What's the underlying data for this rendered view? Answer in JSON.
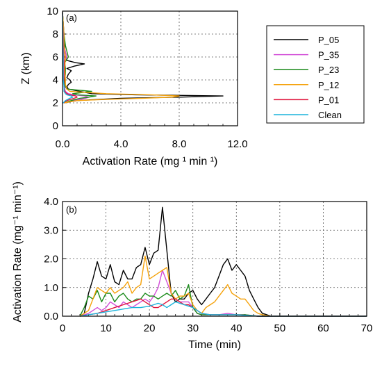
{
  "chart_data": [
    {
      "panel_label": "(a)",
      "type": "line",
      "xlabel": "Activation Rate (mg ¹ min ¹)",
      "ylabel": "Z (km)",
      "xlim": [
        0,
        12
      ],
      "ylim": [
        0,
        10
      ],
      "xticks": [
        "0.0",
        "4.0",
        "8.0",
        "12.0"
      ],
      "yticks": [
        "0",
        "2",
        "4",
        "6",
        "8",
        "10"
      ],
      "grid": true,
      "series": [
        {
          "name": "P_05",
          "color": "#000000",
          "z": [
            2.0,
            2.2,
            2.4,
            2.5,
            2.6,
            2.7,
            2.8,
            3.0,
            3.2,
            3.4,
            3.6,
            3.8,
            4.0,
            4.2,
            4.5,
            4.8,
            5.0,
            5.2,
            5.4,
            5.5,
            5.7,
            6.0,
            6.5,
            7.0,
            7.5,
            8.0,
            8.5,
            9.0,
            9.5,
            9.9
          ],
          "rate": [
            0.1,
            1.0,
            4.0,
            8.0,
            11.0,
            5.0,
            2.0,
            1.2,
            0.4,
            0.3,
            0.4,
            0.6,
            0.5,
            0.3,
            0.4,
            0.6,
            0.3,
            0.8,
            1.5,
            0.9,
            0.3,
            0.2,
            0.15,
            0.15,
            0.1,
            0.1,
            0.05,
            0.05,
            0.02,
            0.0
          ]
        },
        {
          "name": "P_35",
          "color": "#d24ed8",
          "z": [
            2.0,
            2.2,
            2.4,
            2.5,
            2.6,
            2.7,
            2.8,
            3.0,
            3.2,
            3.4,
            3.6,
            4.0,
            4.5,
            5.0,
            5.5,
            6.0,
            6.5,
            7.0,
            8.0,
            9.0,
            9.9
          ],
          "rate": [
            0.1,
            0.8,
            1.6,
            1.8,
            1.5,
            0.8,
            0.4,
            0.2,
            0.15,
            0.15,
            0.1,
            0.1,
            0.1,
            0.1,
            0.1,
            0.3,
            0.2,
            0.1,
            0.1,
            0.05,
            0.0
          ]
        },
        {
          "name": "P_23",
          "color": "#1a8a1a",
          "z": [
            2.0,
            2.2,
            2.4,
            2.5,
            2.6,
            2.7,
            2.8,
            3.0,
            3.2,
            3.4,
            3.6,
            4.0,
            4.5,
            5.0,
            5.5,
            6.0,
            6.5,
            7.0,
            8.0,
            9.0,
            9.9
          ],
          "rate": [
            0.1,
            0.6,
            1.2,
            1.8,
            2.3,
            1.0,
            0.7,
            2.0,
            0.3,
            0.2,
            0.15,
            0.15,
            0.2,
            0.2,
            0.15,
            0.4,
            0.3,
            0.2,
            0.1,
            0.05,
            0.0
          ]
        },
        {
          "name": "P_12",
          "color": "#f5a20a",
          "z": [
            2.0,
            2.2,
            2.3,
            2.4,
            2.5,
            2.6,
            2.7,
            2.8,
            3.0,
            3.2,
            3.6,
            4.0,
            5.0,
            6.0,
            7.0,
            8.0,
            9.0,
            9.9
          ],
          "rate": [
            0.1,
            1.0,
            3.0,
            5.5,
            7.5,
            8.0,
            6.0,
            3.0,
            0.5,
            0.3,
            0.2,
            0.2,
            0.15,
            0.2,
            0.1,
            0.1,
            0.05,
            0.0
          ]
        },
        {
          "name": "P_01",
          "color": "#e0143c",
          "z": [
            2.0,
            2.2,
            2.4,
            2.5,
            2.6,
            2.7,
            2.8,
            3.0,
            3.4,
            4.0,
            5.0,
            6.0,
            7.0,
            8.0,
            9.0,
            9.9
          ],
          "rate": [
            0.05,
            0.3,
            0.8,
            1.0,
            0.9,
            0.5,
            0.3,
            0.15,
            0.1,
            0.1,
            0.1,
            0.1,
            0.05,
            0.05,
            0.02,
            0.0
          ]
        },
        {
          "name": "Clean",
          "color": "#1ab4dc",
          "z": [
            2.0,
            2.2,
            2.4,
            2.5,
            2.6,
            2.7,
            2.8,
            3.0,
            3.5,
            4.0,
            5.0,
            6.0,
            7.0,
            8.0,
            9.0,
            9.9
          ],
          "rate": [
            0.05,
            0.2,
            0.5,
            0.7,
            0.6,
            0.3,
            0.2,
            0.1,
            0.1,
            0.05,
            0.05,
            0.05,
            0.03,
            0.03,
            0.02,
            0.0
          ]
        }
      ]
    },
    {
      "panel_label": "(b)",
      "type": "line",
      "xlabel": "Time (min)",
      "ylabel": "Activation Rate (mg⁻¹ min⁻¹)",
      "xlim": [
        0,
        70
      ],
      "ylim": [
        0,
        4
      ],
      "xticks": [
        "0",
        "10",
        "20",
        "30",
        "40",
        "50",
        "60",
        "70"
      ],
      "yticks": [
        "0.0",
        "1.0",
        "2.0",
        "3.0",
        "4.0"
      ],
      "grid": true,
      "series": [
        {
          "name": "P_05",
          "color": "#000000",
          "x": [
            4,
            5,
            6,
            7,
            8,
            9,
            10,
            11,
            12,
            13,
            14,
            15,
            16,
            17,
            18,
            19,
            20,
            21,
            22,
            23,
            24,
            25,
            26,
            27,
            28,
            29,
            30,
            31,
            32,
            33,
            34,
            35,
            36,
            37,
            38,
            39,
            40,
            41,
            42,
            43,
            44,
            45,
            46,
            47,
            48,
            50,
            55,
            60,
            65,
            70
          ],
          "y": [
            0.0,
            0.1,
            0.8,
            1.3,
            1.9,
            1.4,
            1.3,
            1.8,
            1.2,
            1.1,
            1.6,
            1.3,
            1.3,
            1.7,
            1.8,
            2.4,
            1.8,
            2.2,
            2.3,
            3.8,
            2.3,
            0.8,
            0.5,
            0.6,
            0.6,
            0.8,
            0.9,
            0.6,
            0.4,
            0.6,
            0.8,
            1.0,
            1.4,
            1.8,
            2.0,
            1.6,
            1.8,
            1.6,
            1.4,
            0.9,
            0.6,
            0.3,
            0.1,
            0.05,
            0.0,
            0.0,
            0.0,
            0.0,
            0.0,
            0.0
          ]
        },
        {
          "name": "P_35",
          "color": "#d24ed8",
          "x": [
            4,
            6,
            7,
            8,
            9,
            10,
            11,
            12,
            13,
            14,
            15,
            16,
            17,
            18,
            19,
            20,
            21,
            22,
            23,
            24,
            25,
            26,
            27,
            28,
            29,
            30,
            31,
            32,
            34,
            36,
            38,
            40,
            42,
            45,
            50,
            55,
            60,
            65,
            70
          ],
          "y": [
            0.0,
            0.1,
            0.2,
            0.3,
            0.2,
            0.3,
            0.5,
            0.4,
            0.3,
            0.5,
            0.4,
            0.3,
            0.4,
            0.5,
            0.6,
            0.5,
            0.7,
            1.0,
            1.6,
            1.2,
            0.8,
            0.6,
            0.5,
            0.5,
            0.5,
            0.3,
            0.1,
            0.05,
            0.05,
            0.05,
            0.1,
            0.05,
            0.05,
            0.0,
            0.0,
            0.0,
            0.0,
            0.0,
            0.0
          ]
        },
        {
          "name": "P_23",
          "color": "#1a8a1a",
          "x": [
            4,
            5,
            6,
            7,
            8,
            9,
            10,
            11,
            12,
            13,
            14,
            15,
            16,
            17,
            18,
            19,
            20,
            21,
            22,
            23,
            24,
            25,
            26,
            27,
            28,
            29,
            30,
            31,
            32,
            34,
            36,
            38,
            40,
            42,
            45,
            50,
            55,
            60,
            65,
            70
          ],
          "y": [
            0.0,
            0.3,
            0.7,
            0.6,
            0.9,
            0.5,
            0.8,
            0.8,
            0.5,
            0.7,
            0.8,
            0.6,
            0.5,
            0.6,
            0.6,
            0.8,
            0.7,
            0.7,
            0.6,
            0.7,
            0.8,
            0.7,
            0.9,
            0.6,
            0.7,
            1.1,
            0.3,
            0.1,
            0.05,
            0.05,
            0.05,
            0.05,
            0.05,
            0.05,
            0.0,
            0.0,
            0.0,
            0.0,
            0.0,
            0.0
          ]
        },
        {
          "name": "P_12",
          "color": "#f5a20a",
          "x": [
            4,
            6,
            7,
            8,
            9,
            10,
            11,
            12,
            13,
            14,
            15,
            16,
            17,
            18,
            19,
            20,
            21,
            22,
            23,
            24,
            25,
            26,
            27,
            28,
            29,
            30,
            31,
            32,
            33,
            34,
            35,
            36,
            37,
            38,
            39,
            40,
            41,
            42,
            43,
            44,
            45,
            46,
            48,
            50,
            55,
            60,
            65,
            70
          ],
          "y": [
            0.0,
            0.2,
            0.6,
            1.0,
            0.9,
            0.8,
            1.0,
            0.8,
            0.9,
            1.0,
            1.2,
            0.8,
            1.0,
            1.1,
            2.1,
            1.3,
            1.4,
            1.5,
            1.6,
            1.7,
            0.8,
            0.6,
            0.7,
            0.7,
            0.8,
            0.4,
            0.2,
            0.1,
            0.3,
            0.4,
            0.5,
            0.7,
            0.9,
            1.1,
            0.8,
            0.7,
            0.6,
            0.6,
            0.4,
            0.2,
            0.1,
            0.05,
            0.0,
            0.0,
            0.0,
            0.0,
            0.0,
            0.0
          ]
        },
        {
          "name": "P_01",
          "color": "#e0143c",
          "x": [
            4,
            6,
            8,
            10,
            12,
            14,
            16,
            18,
            19,
            20,
            21,
            22,
            23,
            24,
            25,
            26,
            27,
            28,
            29,
            30,
            32,
            34,
            36,
            38,
            40,
            45,
            50,
            60,
            70
          ],
          "y": [
            0.0,
            0.05,
            0.1,
            0.2,
            0.3,
            0.4,
            0.5,
            0.6,
            0.5,
            0.4,
            0.3,
            0.3,
            0.4,
            0.5,
            0.6,
            0.6,
            0.5,
            0.4,
            0.4,
            0.3,
            0.1,
            0.05,
            0.05,
            0.05,
            0.05,
            0.0,
            0.0,
            0.0,
            0.0
          ]
        },
        {
          "name": "Clean",
          "color": "#1ab4dc",
          "x": [
            4,
            6,
            8,
            10,
            12,
            14,
            16,
            18,
            20,
            21,
            22,
            23,
            24,
            25,
            26,
            27,
            28,
            29,
            30,
            32,
            34,
            36,
            40,
            45,
            50,
            60,
            70
          ],
          "y": [
            0.0,
            0.05,
            0.1,
            0.15,
            0.2,
            0.25,
            0.3,
            0.3,
            0.35,
            0.4,
            0.45,
            0.4,
            0.3,
            0.4,
            0.5,
            0.45,
            0.4,
            0.35,
            0.3,
            0.1,
            0.05,
            0.05,
            0.05,
            0.0,
            0.0,
            0.0,
            0.0
          ]
        }
      ]
    }
  ]
}
